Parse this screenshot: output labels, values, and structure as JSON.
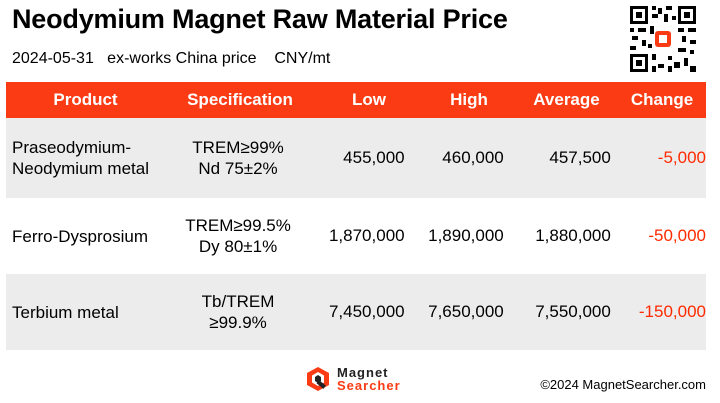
{
  "header": {
    "title": "Neodymium Magnet Raw Material Price",
    "subtitle": "2024-05-31   ex-works China price    CNY/mt"
  },
  "table": {
    "columns": [
      "Product",
      "Specification",
      "Low",
      "High",
      "Average",
      "Change"
    ],
    "rows": [
      {
        "product_lines": [
          "Praseodymium-",
          "Neodymium metal"
        ],
        "spec_lines": [
          "TREM≥99%",
          "Nd 75±2%"
        ],
        "low": "455,000",
        "high": "460,000",
        "average": "457,500",
        "change": "-5,000"
      },
      {
        "product_lines": [
          "Ferro-Dysprosium"
        ],
        "spec_lines": [
          "TREM≥99.5%",
          "Dy 80±1%"
        ],
        "low": "1,870,000",
        "high": "1,890,000",
        "average": "1,880,000",
        "change": "-50,000"
      },
      {
        "product_lines": [
          "Terbium metal"
        ],
        "spec_lines": [
          "Tb/TREM",
          "≥99.9%"
        ],
        "low": "7,450,000",
        "high": "7,650,000",
        "average": "7,550,000",
        "change": "-150,000"
      }
    ]
  },
  "footer": {
    "logo_line1": "Magnet",
    "logo_line2": "Searcher",
    "copyright": "©2024 MagnetSearcher.com"
  },
  "colors": {
    "header_bg": "#fa3b14",
    "change_text": "#ff2a00",
    "row_alt_bg": "#ececec"
  },
  "icons": {
    "qr": "qr-code-icon",
    "logo": "magnet-searcher-logo-icon"
  }
}
